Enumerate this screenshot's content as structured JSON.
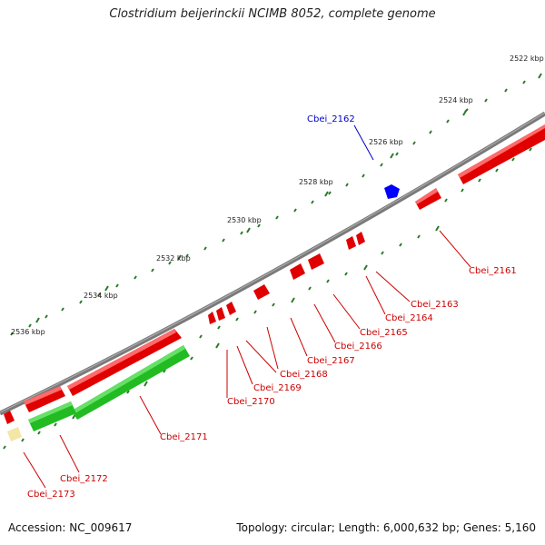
{
  "title": "Clostridium beijerinckii NCIMB 8052, complete genome",
  "accession": "Accession: NC_009617",
  "topology": "Topology: circular; Length: 6,000,632 bp; Genes: 5,160",
  "colors": {
    "backbone": "#808080",
    "forward_gene": "#ff0000",
    "reverse_gene": "#ff0000",
    "rna_gene": "#2ecc40",
    "highlight_gene": "#0000ff",
    "pseudo_gene": "#f0e0a0",
    "tick": "#2a7a2a",
    "label_red": "#cc0000",
    "label_blue": "#0000cc"
  },
  "kbp_labels": [
    "2522 kbp",
    "2524 kbp",
    "2526 kbp",
    "2528 kbp",
    "2530 kbp",
    "2532 kbp",
    "2534 kbp",
    "2536 kbp"
  ],
  "gene_labels": [
    {
      "text": "Cbei_2162",
      "color": "blue"
    },
    {
      "text": "Cbei_2161",
      "color": "red"
    },
    {
      "text": "Cbei_2163",
      "color": "red"
    },
    {
      "text": "Cbei_2164",
      "color": "red"
    },
    {
      "text": "Cbei_2165",
      "color": "red"
    },
    {
      "text": "Cbei_2166",
      "color": "red"
    },
    {
      "text": "Cbei_2167",
      "color": "red"
    },
    {
      "text": "Cbei_2168",
      "color": "red"
    },
    {
      "text": "Cbei_2169",
      "color": "red"
    },
    {
      "text": "Cbei_2170",
      "color": "red"
    },
    {
      "text": "Cbei_2171",
      "color": "red"
    },
    {
      "text": "Cbei_2172",
      "color": "red"
    },
    {
      "text": "Cbei_2173",
      "color": "red"
    }
  ]
}
